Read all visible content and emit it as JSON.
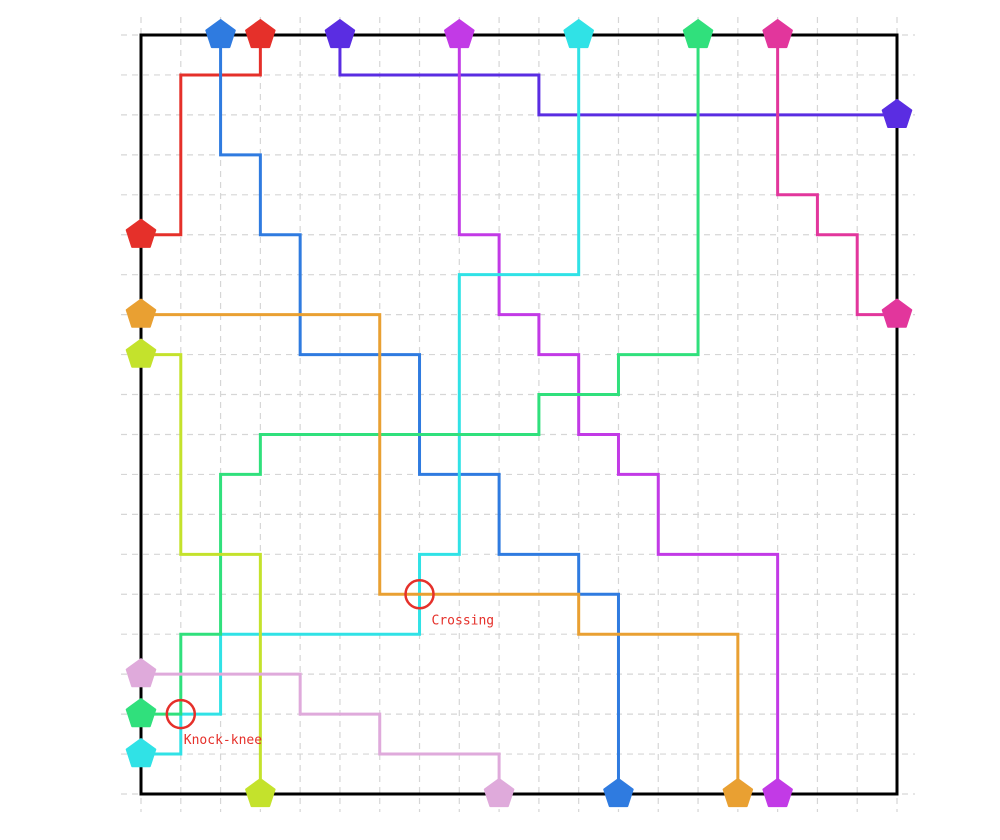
{
  "grid": {
    "columns": 20,
    "rows": 20
  },
  "nets": [
    {
      "id": "red",
      "color": "#e5302a",
      "path": [
        [
          3,
          0
        ],
        [
          3,
          1
        ],
        [
          1,
          1
        ],
        [
          1,
          5
        ],
        [
          0,
          5
        ]
      ]
    },
    {
      "id": "blue",
      "color": "#2f7be0",
      "path": [
        [
          2,
          0
        ],
        [
          2,
          3
        ],
        [
          3,
          3
        ],
        [
          3,
          5
        ],
        [
          4,
          5
        ],
        [
          4,
          8
        ],
        [
          7,
          8
        ],
        [
          7,
          11
        ],
        [
          9,
          11
        ],
        [
          9,
          13
        ],
        [
          11,
          13
        ],
        [
          11,
          14
        ],
        [
          12,
          14
        ],
        [
          12,
          19
        ]
      ]
    },
    {
      "id": "indigo",
      "color": "#5a2de2",
      "path": [
        [
          5,
          0
        ],
        [
          5,
          1
        ],
        [
          10,
          1
        ],
        [
          10,
          2
        ],
        [
          19,
          2
        ]
      ]
    },
    {
      "id": "violet",
      "color": "#c23ae6",
      "path": [
        [
          8,
          0
        ],
        [
          8,
          5
        ],
        [
          9,
          5
        ],
        [
          9,
          7
        ],
        [
          10,
          7
        ],
        [
          10,
          8
        ],
        [
          11,
          8
        ],
        [
          11,
          10
        ],
        [
          12,
          10
        ],
        [
          12,
          11
        ],
        [
          13,
          11
        ],
        [
          13,
          13
        ],
        [
          16,
          13
        ],
        [
          16,
          19
        ]
      ]
    },
    {
      "id": "cyan",
      "color": "#30e2e6",
      "path": [
        [
          11,
          0
        ],
        [
          11,
          6
        ],
        [
          8,
          6
        ],
        [
          8,
          13
        ],
        [
          7,
          13
        ],
        [
          7,
          15
        ],
        [
          2,
          15
        ],
        [
          2,
          17
        ],
        [
          1,
          17
        ],
        [
          1,
          18
        ],
        [
          0,
          18
        ]
      ]
    },
    {
      "id": "green",
      "color": "#30e07c",
      "path": [
        [
          14,
          0
        ],
        [
          14,
          8
        ],
        [
          12,
          8
        ],
        [
          12,
          9
        ],
        [
          10,
          9
        ],
        [
          10,
          10
        ],
        [
          3,
          10
        ],
        [
          3,
          11
        ],
        [
          2,
          11
        ],
        [
          2,
          15
        ],
        [
          1,
          15
        ],
        [
          1,
          17
        ],
        [
          0,
          17
        ]
      ]
    },
    {
      "id": "pink",
      "color": "#e2369c",
      "path": [
        [
          16,
          0
        ],
        [
          16,
          4
        ],
        [
          17,
          4
        ],
        [
          17,
          5
        ],
        [
          18,
          5
        ],
        [
          18,
          7
        ],
        [
          19,
          7
        ]
      ]
    },
    {
      "id": "orange",
      "color": "#e9a032",
      "path": [
        [
          0,
          7
        ],
        [
          6,
          7
        ],
        [
          6,
          14
        ],
        [
          11,
          14
        ],
        [
          11,
          15
        ],
        [
          15,
          15
        ],
        [
          15,
          19
        ]
      ]
    },
    {
      "id": "lime",
      "color": "#c4e22c",
      "path": [
        [
          0,
          8
        ],
        [
          1,
          8
        ],
        [
          1,
          13
        ],
        [
          3,
          13
        ],
        [
          3,
          19
        ]
      ]
    },
    {
      "id": "light-pink",
      "color": "#dfaadb",
      "path": [
        [
          0,
          16
        ],
        [
          4,
          16
        ],
        [
          4,
          17
        ],
        [
          6,
          17
        ],
        [
          6,
          18
        ],
        [
          9,
          18
        ],
        [
          9,
          19
        ]
      ]
    }
  ],
  "annotations": [
    {
      "text": "Crossing",
      "at": [
        7,
        14
      ],
      "color": "#e5302a"
    },
    {
      "text": "Knock-knee",
      "at": [
        1,
        17
      ],
      "color": "#e5302a"
    }
  ]
}
